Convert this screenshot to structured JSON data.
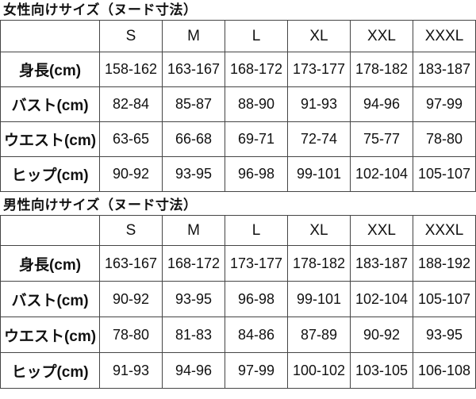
{
  "colors": {
    "background": "#ffffff",
    "text": "#111111",
    "border": "#454545"
  },
  "chart_data": [
    {
      "type": "table",
      "title": "女性向けサイズ（ヌード寸法）",
      "columns": [
        "S",
        "M",
        "L",
        "XL",
        "XXL",
        "XXXL"
      ],
      "rows": [
        {
          "label": "身長(cm)",
          "values": [
            "158-162",
            "163-167",
            "168-172",
            "173-177",
            "178-182",
            "183-187"
          ]
        },
        {
          "label": "バスト(cm)",
          "values": [
            "82-84",
            "85-87",
            "88-90",
            "91-93",
            "94-96",
            "97-99"
          ]
        },
        {
          "label": "ウエスト(cm)",
          "values": [
            "63-65",
            "66-68",
            "69-71",
            "72-74",
            "75-77",
            "78-80"
          ]
        },
        {
          "label": "ヒップ(cm)",
          "values": [
            "90-92",
            "93-95",
            "96-98",
            "99-101",
            "102-104",
            "105-107"
          ]
        }
      ]
    },
    {
      "type": "table",
      "title": "男性向けサイズ（ヌード寸法）",
      "columns": [
        "S",
        "M",
        "L",
        "XL",
        "XXL",
        "XXXL"
      ],
      "rows": [
        {
          "label": "身長(cm)",
          "values": [
            "163-167",
            "168-172",
            "173-177",
            "178-182",
            "183-187",
            "188-192"
          ]
        },
        {
          "label": "バスト(cm)",
          "values": [
            "90-92",
            "93-95",
            "96-98",
            "99-101",
            "102-104",
            "105-107"
          ]
        },
        {
          "label": "ウエスト(cm)",
          "values": [
            "78-80",
            "81-83",
            "84-86",
            "87-89",
            "90-92",
            "93-95"
          ]
        },
        {
          "label": "ヒップ(cm)",
          "values": [
            "91-93",
            "94-96",
            "97-99",
            "100-102",
            "103-105",
            "106-108"
          ]
        }
      ]
    }
  ]
}
